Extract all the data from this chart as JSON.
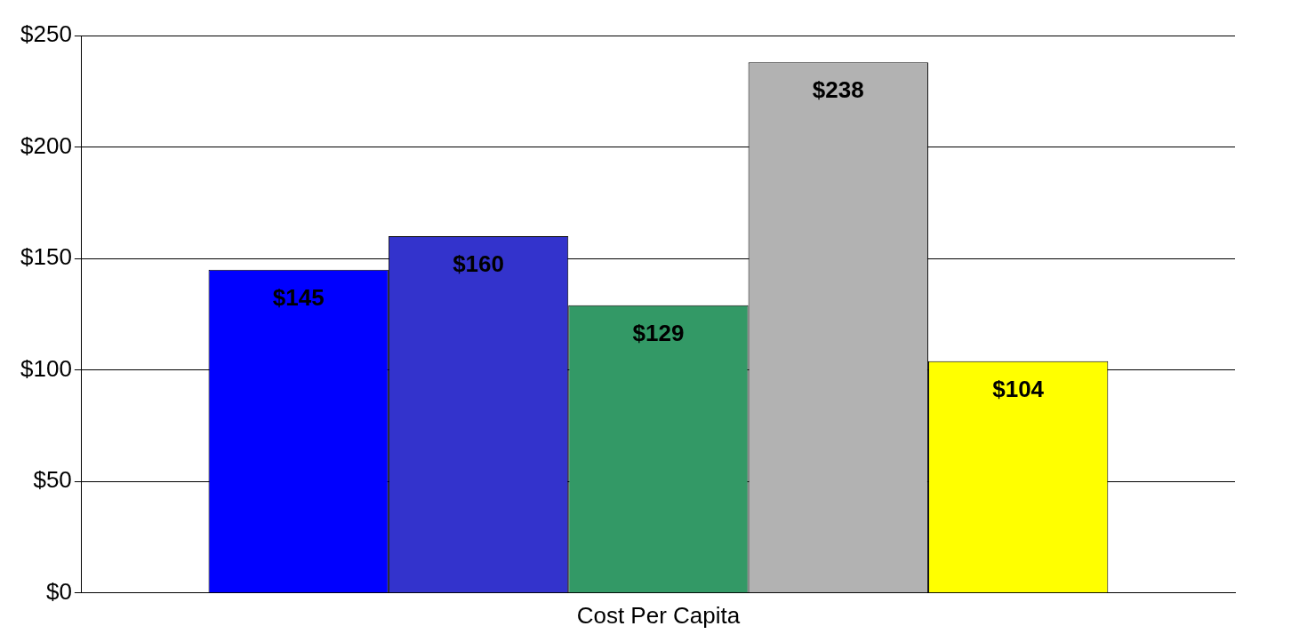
{
  "chart_data": {
    "type": "bar",
    "categories": [
      "Cost Per Capita"
    ],
    "series": [
      {
        "color": "#0000ff",
        "values": [
          145
        ],
        "value_labels": [
          "$145"
        ]
      },
      {
        "color": "#3333cc",
        "values": [
          160
        ],
        "value_labels": [
          "$160"
        ]
      },
      {
        "color": "#339966",
        "values": [
          129
        ],
        "value_labels": [
          "$129"
        ]
      },
      {
        "color": "#b2b2b2",
        "values": [
          238
        ],
        "value_labels": [
          "$238"
        ]
      },
      {
        "color": "#ffff00",
        "values": [
          104
        ],
        "value_labels": [
          "$104"
        ]
      }
    ],
    "ylim": [
      0,
      250
    ],
    "yticks": [
      {
        "value": 0,
        "label": "$0"
      },
      {
        "value": 50,
        "label": "$50"
      },
      {
        "value": 100,
        "label": "$100"
      },
      {
        "value": 150,
        "label": "$150"
      },
      {
        "value": 200,
        "label": "$200"
      },
      {
        "value": 250,
        "label": "$250"
      }
    ],
    "grid": "y",
    "legend": false
  }
}
